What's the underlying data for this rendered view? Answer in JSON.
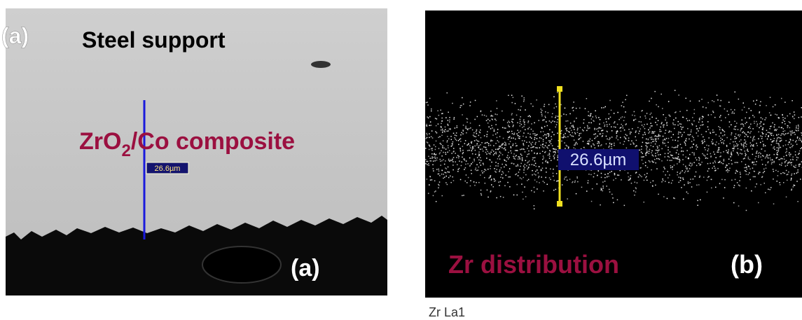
{
  "panel_a": {
    "corner_label": "(a)",
    "top_label": "Steel support",
    "layer_label": {
      "main": "ZrO",
      "subscript": "2",
      "rest": "/Co composite"
    },
    "scale_label": "26.6µm",
    "panel_label": "(a)"
  },
  "panel_b": {
    "scale_label": "26.6µm",
    "element_label": "Zr distribution",
    "panel_label": "(b)",
    "caption": "Zr La1"
  }
}
